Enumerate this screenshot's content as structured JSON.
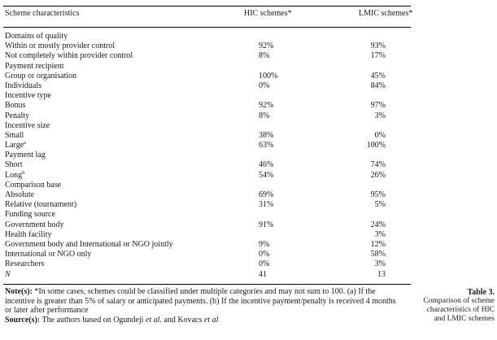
{
  "table": {
    "headers": {
      "characteristic": "Scheme characteristics",
      "hic": "HIC schemes*",
      "lmic": "LMIC schemes*"
    },
    "rows": [
      {
        "label": "Domains of quality",
        "hic": "",
        "lmic": ""
      },
      {
        "label": "Within or mostly provider control",
        "hic": "92%",
        "lmic": "93%"
      },
      {
        "label": "Not completely within provider control",
        "hic": "8%",
        "lmic": "17%"
      },
      {
        "label": "Payment recipient",
        "hic": "",
        "lmic": ""
      },
      {
        "label": "Group or organisation",
        "hic": "100%",
        "lmic": "45%"
      },
      {
        "label": "Individuals",
        "hic": "0%",
        "lmic": "84%"
      },
      {
        "label": "Incentive type",
        "hic": "",
        "lmic": ""
      },
      {
        "label": "Bonus",
        "hic": "92%",
        "lmic": "97%"
      },
      {
        "label": "Penalty",
        "hic": "8%",
        "lmic": "3%"
      },
      {
        "label": "Incentive size",
        "hic": "",
        "lmic": ""
      },
      {
        "label": "Small",
        "hic": "38%",
        "lmic": "0%"
      },
      {
        "label": "Large",
        "sup": "a",
        "hic": "63%",
        "lmic": "100%"
      },
      {
        "label": "Payment lag",
        "hic": "",
        "lmic": ""
      },
      {
        "label": "Short",
        "hic": "46%",
        "lmic": "74%"
      },
      {
        "label": "Long",
        "sup": "b",
        "hic": "54%",
        "lmic": "26%"
      },
      {
        "label": "Comparison base",
        "hic": "",
        "lmic": ""
      },
      {
        "label": "Absolute",
        "hic": "69%",
        "lmic": "95%"
      },
      {
        "label": "Relative (tournament)",
        "hic": "31%",
        "lmic": "5%"
      },
      {
        "label": "Funding source",
        "hic": "",
        "lmic": ""
      },
      {
        "label": "Government body",
        "hic": "91%",
        "lmic": "24%"
      },
      {
        "label": "Health facility",
        "hic": "",
        "lmic": "3%"
      },
      {
        "label": "Government body and International or NGO jointly",
        "hic": "9%",
        "lmic": "12%"
      },
      {
        "label": "International or NGO only",
        "hic": "0%",
        "lmic": "58%"
      },
      {
        "label": "Researchers",
        "hic": "0%",
        "lmic": "3%"
      },
      {
        "label": "N",
        "italic": true,
        "hic": "41",
        "lmic": "13"
      }
    ]
  },
  "notes": {
    "notes_label": "Note(s):",
    "notes_text": " *In some cases, schemes could be classified under multiple categories and may not sum to 100. (a) If the incentive is greater than 5% of salary or anticipated payments. (b) If the incentive payment/penalty is received 4 months or later after performance",
    "source_label": "Source(s):",
    "source_text_1": " The authors based on Ogundeji ",
    "source_et_al_1": "et al.",
    "source_text_2": " and Kovacs ",
    "source_et_al_2": "et al"
  },
  "caption": {
    "title": "Table 3.",
    "line1": "Comparison of scheme",
    "line2": "characteristics of HIC",
    "line3": "and LMIC schemes"
  }
}
